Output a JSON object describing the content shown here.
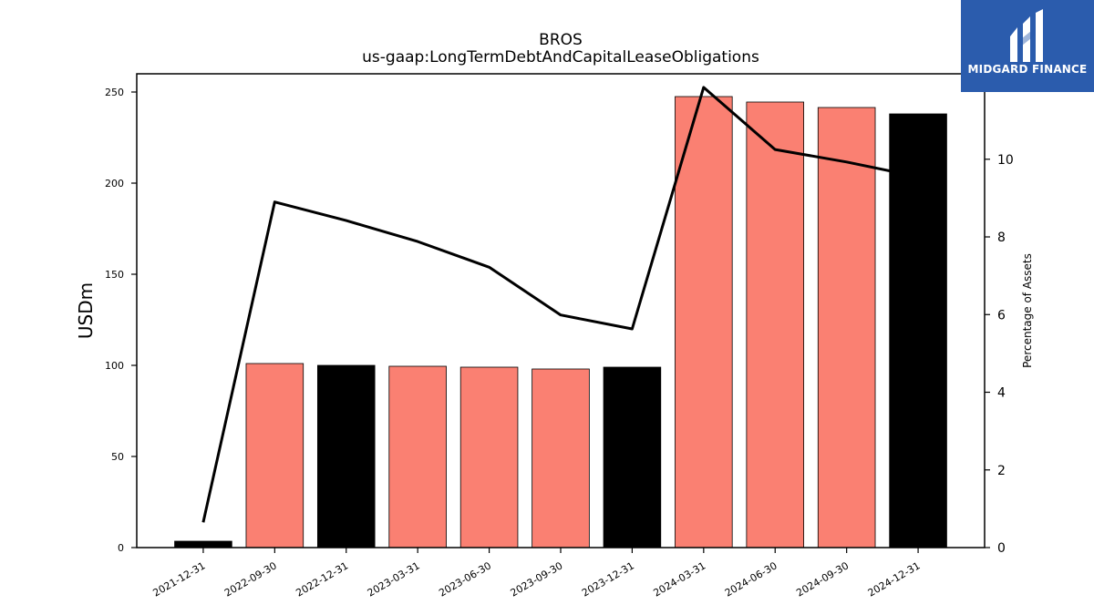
{
  "brand": {
    "name": "MIDGARD FINANCE",
    "bg_color": "#2b5cad"
  },
  "chart_data": {
    "type": "bar",
    "title": "BROS",
    "subtitle": "us-gaap:LongTermDebtAndCapitalLeaseObligations",
    "ylabel": "USDm",
    "y2label": "Percentage of Assets",
    "ylim": [
      0,
      260
    ],
    "y2lim": [
      0,
      12.2
    ],
    "yticks": [
      0,
      50,
      100,
      150,
      200,
      250
    ],
    "y2ticks": [
      0,
      2,
      4,
      6,
      8,
      10
    ],
    "categories": [
      "2021-12-31",
      "2022-09-30",
      "2022-12-31",
      "2023-03-31",
      "2023-06-30",
      "2023-09-30",
      "2023-12-31",
      "2024-03-31",
      "2024-06-30",
      "2024-09-30",
      "2024-12-31"
    ],
    "series": [
      {
        "values": [
          3.5,
          101,
          100,
          99.5,
          99,
          98,
          99,
          247.5,
          244.5,
          241.5,
          238
        ],
        "colors": [
          "#000000",
          "#fa8072",
          "#000000",
          "#fa8072",
          "#fa8072",
          "#fa8072",
          "#000000",
          "#fa8072",
          "#fa8072",
          "#fa8072",
          "#000000"
        ]
      },
      {
        "type": "line",
        "axis": "right",
        "color": "#000000",
        "values": [
          0.65,
          8.9,
          8.42,
          7.88,
          7.22,
          5.99,
          5.63,
          11.85,
          10.25,
          9.93,
          9.55
        ]
      }
    ],
    "grid": false
  }
}
